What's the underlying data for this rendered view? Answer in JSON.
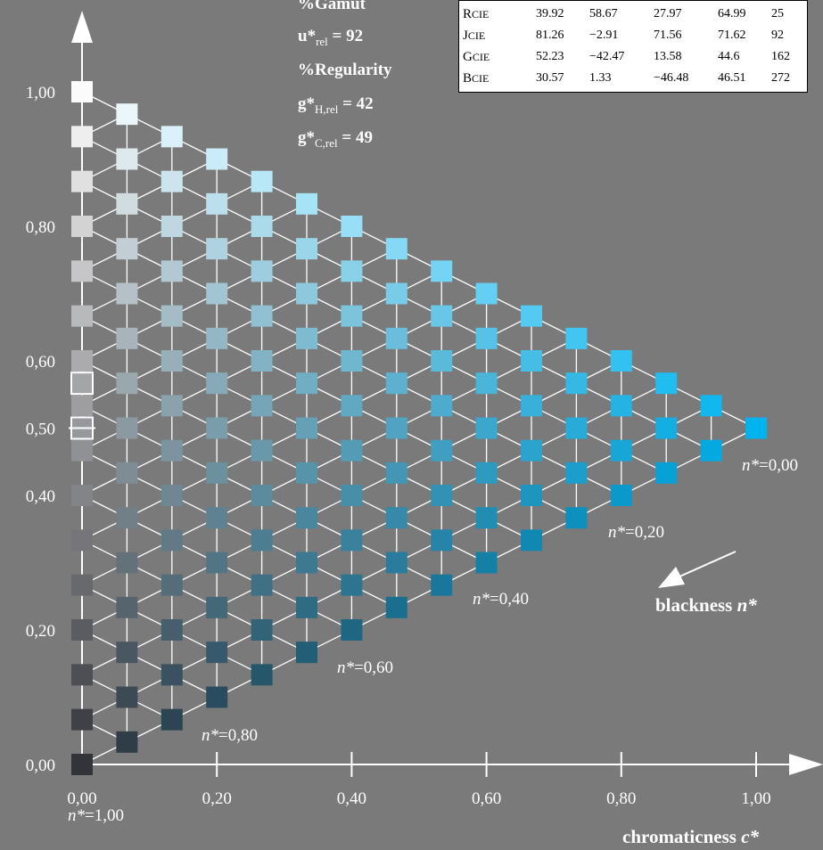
{
  "chart_data": {
    "type": "scatter",
    "xlabel": "chromaticness c*",
    "xlabel_main": "chromaticness ",
    "xlabel_var": "c*",
    "x_ticks": [
      "0,00",
      "0,20",
      "0,40",
      "0,60",
      "0,80",
      "1,00"
    ],
    "y_ticks": [
      {
        "value": 0.0,
        "label": "0,00"
      },
      {
        "value": 0.2,
        "label": "0,20"
      },
      {
        "value": 0.4,
        "label": "0,40"
      },
      {
        "value": 0.5,
        "label": "0,50"
      },
      {
        "value": 0.6,
        "label": "0,60"
      },
      {
        "value": 0.8,
        "label": "0,80"
      },
      {
        "value": 1.0,
        "label": "1,00"
      }
    ],
    "xlim": [
      0,
      1
    ],
    "ylim": [
      0,
      1
    ],
    "grid_steps": 15,
    "n_labels": [
      {
        "text": "n*=1,00",
        "n": 1.0
      },
      {
        "text": "n*=0,80",
        "n": 0.8
      },
      {
        "text": "n*=0,60",
        "n": 0.6
      },
      {
        "text": "n*=0,40",
        "n": 0.4
      },
      {
        "text": "n*=0,20",
        "n": 0.2
      },
      {
        "text": "n*=0,00",
        "n": 0.0
      }
    ],
    "blackness_label_main": "blackness ",
    "blackness_label_var": "n*",
    "white_color": "#fbfbfb",
    "black_color": "#33343a",
    "chromatic_color": "#00b2ee",
    "gray_outlined_levels": [
      0.5,
      0.5667
    ]
  },
  "info": {
    "gamut_title": "%Gamut",
    "u_label": "u*",
    "u_sub": "rel",
    "u_value": " = 92",
    "regularity_title": "%Regularity",
    "gh_label": "g*",
    "gh_sub": "H,rel",
    "gh_value": " = 42",
    "gc_label": "g*",
    "gc_sub": "C,rel",
    "gc_value": " = 49"
  },
  "table": {
    "rows": [
      {
        "name": "R",
        "sub": "CIE",
        "v": [
          "39.92",
          "58.67",
          "27.97",
          "64.99",
          "25"
        ]
      },
      {
        "name": "J",
        "sub": "CIE",
        "v": [
          "81.26",
          "−2.91",
          "71.56",
          "71.62",
          "92"
        ]
      },
      {
        "name": "G",
        "sub": "CIE",
        "v": [
          "52.23",
          "−42.47",
          "13.58",
          "44.6",
          "162"
        ]
      },
      {
        "name": "B",
        "sub": "CIE",
        "v": [
          "30.57",
          "1.33",
          "−46.48",
          "46.51",
          "272"
        ]
      }
    ]
  }
}
